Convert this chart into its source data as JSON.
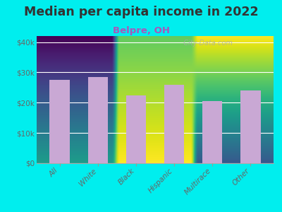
{
  "title": "Median per capita income in 2022",
  "subtitle": "Belpre, OH",
  "categories": [
    "All",
    "White",
    "Black",
    "Hispanic",
    "Multirace",
    "Other"
  ],
  "values": [
    27500,
    28500,
    22500,
    26000,
    20500,
    24000
  ],
  "bar_color": "#c9a8d4",
  "bg_outer": "#00eeee",
  "bg_chart_bottom": "#e8f5e0",
  "bg_chart_top": "#d8eef5",
  "title_color": "#333333",
  "subtitle_color": "#aa55bb",
  "tick_label_color": "#666666",
  "ytick_label_color": "#666666",
  "ylim": [
    0,
    42000
  ],
  "yticks": [
    0,
    10000,
    20000,
    30000,
    40000
  ],
  "ytick_labels": [
    "$0",
    "$10k",
    "$20k",
    "$30k",
    "$40k"
  ],
  "watermark": "  City-Data.com",
  "title_fontsize": 12.5,
  "subtitle_fontsize": 9.5,
  "tick_fontsize": 7.5,
  "bar_width": 0.52
}
